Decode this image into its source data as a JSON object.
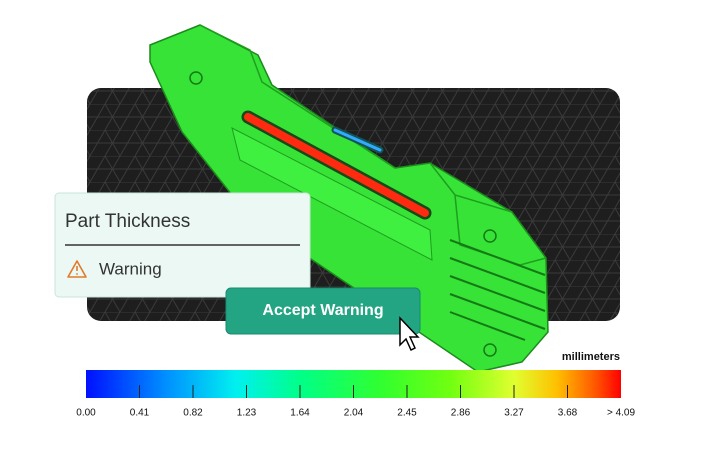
{
  "panel": {
    "title": "Part Thickness",
    "status": "Warning"
  },
  "button": {
    "label": "Accept Warning"
  },
  "colorbar": {
    "unit": "millimeters",
    "ticks": [
      "0.00",
      "0.41",
      "0.82",
      "1.23",
      "1.64",
      "2.04",
      "2.45",
      "2.86",
      "3.27",
      "3.68",
      "> 4.09"
    ]
  }
}
